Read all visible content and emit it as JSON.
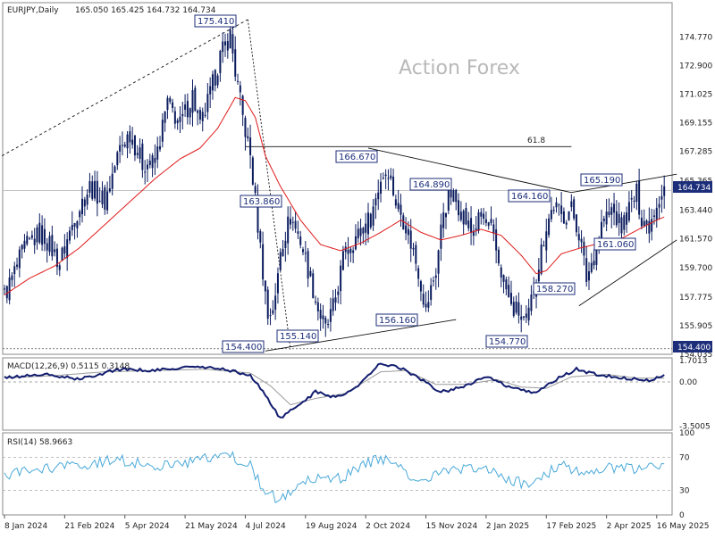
{
  "header": {
    "symbol": "EURJPY,Daily",
    "ohlc": "165.050 165.425 164.732 164.734",
    "watermark": "Action Forex"
  },
  "colors": {
    "candle": "#0b1c5e",
    "ma": "#e01b1b",
    "macd_line": "#111c6e",
    "macd_signal": "#9a9a9a",
    "rsi_line": "#49a9d9",
    "grid": "#c8c8c8",
    "label_border": "#1c2e7a"
  },
  "price_panel": {
    "ylim": [
      154.035,
      177.0
    ],
    "ticks": [
      "174.770",
      "172.900",
      "171.025",
      "169.155",
      "167.285",
      "165.365",
      "163.440",
      "161.570",
      "159.700",
      "157.775",
      "155.905",
      "154.035"
    ],
    "current_price": "164.734",
    "support_price": "154.400",
    "fib_label": "61.8",
    "fib_level": 167.5
  },
  "macd_panel": {
    "title": "MACD(12,26,9) 0.5115 0.3148",
    "ylim": [
      -3.8,
      1.9
    ],
    "ticks": [
      "1.7013",
      "0.00",
      "-3.5005"
    ]
  },
  "rsi_panel": {
    "title": "RSI(14) 58.9663",
    "ylim": [
      0,
      100
    ],
    "ticks": [
      "100",
      "70",
      "30",
      "0"
    ]
  },
  "x_axis": {
    "ticks": [
      "8 Jan 2024",
      "21 Feb 2024",
      "5 Apr 2024",
      "21 May 2024",
      "4 Jul 2024",
      "19 Aug 2024",
      "2 Oct 2024",
      "15 Nov 2024",
      "2 Jan 2025",
      "17 Feb 2025",
      "2 Apr 2025",
      "16 May 2025"
    ]
  },
  "chart_data": {
    "type": "line",
    "title": "EURJPY,Daily",
    "x": [
      "8 Jan 2024",
      "21 Feb 2024",
      "5 Apr 2024",
      "21 May 2024",
      "4 Jul 2024",
      "19 Aug 2024",
      "2 Oct 2024",
      "15 Nov 2024",
      "2 Jan 2025",
      "17 Feb 2025",
      "2 Apr 2025",
      "16 May 2025"
    ],
    "series": [
      {
        "name": "EURJPY",
        "values": [
          158.5,
          161.5,
          164.5,
          169.5,
          175.4,
          156.0,
          163.0,
          157.5,
          163.4,
          158.3,
          162.5,
          164.734
        ],
        "anchors": [
          {
            "x": -1,
            "y": 157.5
          },
          {
            "x": 3,
            "y": 159.0
          },
          {
            "x": 8,
            "y": 161.0
          },
          {
            "x": 15,
            "y": 162.0
          },
          {
            "x": 22,
            "y": 160.0
          },
          {
            "x": 28,
            "y": 163.0
          },
          {
            "x": 34,
            "y": 165.0
          },
          {
            "x": 40,
            "y": 164.0
          },
          {
            "x": 46,
            "y": 167.5
          },
          {
            "x": 50,
            "y": 168.5
          },
          {
            "x": 55,
            "y": 166.5
          },
          {
            "x": 60,
            "y": 166.5
          },
          {
            "x": 65,
            "y": 170.5
          },
          {
            "x": 70,
            "y": 169.0
          },
          {
            "x": 75,
            "y": 171.0
          },
          {
            "x": 78,
            "y": 168.8
          },
          {
            "x": 82,
            "y": 171.0
          },
          {
            "x": 86,
            "y": 173.5
          },
          {
            "x": 90,
            "y": 174.9
          },
          {
            "x": 92,
            "y": 172.5
          },
          {
            "x": 95,
            "y": 169.5
          },
          {
            "x": 98,
            "y": 167.0
          },
          {
            "x": 100,
            "y": 164.0
          },
          {
            "x": 103,
            "y": 159.5
          },
          {
            "x": 105,
            "y": 156.5
          },
          {
            "x": 108,
            "y": 157.5
          },
          {
            "x": 110,
            "y": 161.0
          },
          {
            "x": 114,
            "y": 163.0
          },
          {
            "x": 118,
            "y": 161.5
          },
          {
            "x": 122,
            "y": 159.0
          },
          {
            "x": 125,
            "y": 157.0
          },
          {
            "x": 128,
            "y": 155.6
          },
          {
            "x": 131,
            "y": 157.0
          },
          {
            "x": 136,
            "y": 161.0
          },
          {
            "x": 142,
            "y": 162.0
          },
          {
            "x": 146,
            "y": 163.0
          },
          {
            "x": 150,
            "y": 165.5
          },
          {
            "x": 153,
            "y": 166.2
          },
          {
            "x": 156,
            "y": 164.0
          },
          {
            "x": 160,
            "y": 162.5
          },
          {
            "x": 165,
            "y": 159.5
          },
          {
            "x": 168,
            "y": 157.0
          },
          {
            "x": 172,
            "y": 159.5
          },
          {
            "x": 175,
            "y": 163.5
          },
          {
            "x": 178,
            "y": 164.5
          },
          {
            "x": 182,
            "y": 163.5
          },
          {
            "x": 186,
            "y": 162.0
          },
          {
            "x": 190,
            "y": 163.0
          },
          {
            "x": 194,
            "y": 162.0
          },
          {
            "x": 198,
            "y": 159.5
          },
          {
            "x": 202,
            "y": 157.0
          },
          {
            "x": 205,
            "y": 156.8
          },
          {
            "x": 208,
            "y": 155.8
          },
          {
            "x": 210,
            "y": 157.5
          },
          {
            "x": 213,
            "y": 160.0
          },
          {
            "x": 216,
            "y": 162.5
          },
          {
            "x": 219,
            "y": 163.8
          },
          {
            "x": 222,
            "y": 163.0
          },
          {
            "x": 226,
            "y": 163.5
          },
          {
            "x": 229,
            "y": 162.0
          },
          {
            "x": 232,
            "y": 159.0
          },
          {
            "x": 235,
            "y": 160.5
          },
          {
            "x": 238,
            "y": 162.5
          },
          {
            "x": 242,
            "y": 163.5
          },
          {
            "x": 246,
            "y": 162.3
          },
          {
            "x": 249,
            "y": 163.5
          },
          {
            "x": 252,
            "y": 164.5
          },
          {
            "x": 254,
            "y": 163.0
          },
          {
            "x": 257,
            "y": 162.5
          },
          {
            "x": 260,
            "y": 164.0
          },
          {
            "x": 263,
            "y": 165.0
          }
        ]
      },
      {
        "name": "MA",
        "values": [
          157.8,
          160.2,
          163.0,
          167.5,
          171.0,
          162.0,
          160.5,
          160.8,
          161.8,
          160.0,
          160.8,
          163.0
        ],
        "anchors": [
          {
            "x": -1,
            "y": 157.8
          },
          {
            "x": 10,
            "y": 159.0
          },
          {
            "x": 20,
            "y": 159.8
          },
          {
            "x": 30,
            "y": 161.0
          },
          {
            "x": 40,
            "y": 162.5
          },
          {
            "x": 50,
            "y": 164.0
          },
          {
            "x": 60,
            "y": 165.5
          },
          {
            "x": 70,
            "y": 166.8
          },
          {
            "x": 78,
            "y": 167.5
          },
          {
            "x": 85,
            "y": 168.8
          },
          {
            "x": 92,
            "y": 170.8
          },
          {
            "x": 96,
            "y": 170.6
          },
          {
            "x": 100,
            "y": 169.5
          },
          {
            "x": 104,
            "y": 167.0
          },
          {
            "x": 110,
            "y": 165.0
          },
          {
            "x": 118,
            "y": 162.8
          },
          {
            "x": 126,
            "y": 161.2
          },
          {
            "x": 134,
            "y": 160.8
          },
          {
            "x": 142,
            "y": 161.3
          },
          {
            "x": 150,
            "y": 162.0
          },
          {
            "x": 158,
            "y": 162.8
          },
          {
            "x": 166,
            "y": 162.0
          },
          {
            "x": 174,
            "y": 161.5
          },
          {
            "x": 182,
            "y": 161.8
          },
          {
            "x": 190,
            "y": 162.2
          },
          {
            "x": 198,
            "y": 161.8
          },
          {
            "x": 206,
            "y": 160.5
          },
          {
            "x": 212,
            "y": 159.3
          },
          {
            "x": 216,
            "y": 159.5
          },
          {
            "x": 222,
            "y": 160.6
          },
          {
            "x": 230,
            "y": 161.0
          },
          {
            "x": 238,
            "y": 161.3
          },
          {
            "x": 246,
            "y": 161.6
          },
          {
            "x": 254,
            "y": 162.3
          },
          {
            "x": 260,
            "y": 162.8
          },
          {
            "x": 263,
            "y": 163.0
          }
        ]
      }
    ],
    "annotations": [
      {
        "text": "175.410",
        "value": 175.41
      },
      {
        "text": "166.670",
        "value": 166.67
      },
      {
        "text": "164.890",
        "value": 164.89
      },
      {
        "text": "164.160",
        "value": 164.16
      },
      {
        "text": "165.190",
        "value": 165.19
      },
      {
        "text": "163.860",
        "value": 163.86
      },
      {
        "text": "161.060",
        "value": 161.06
      },
      {
        "text": "158.270",
        "value": 158.27
      },
      {
        "text": "156.160",
        "value": 156.16
      },
      {
        "text": "155.140",
        "value": 155.14
      },
      {
        "text": "154.400",
        "value": 154.4
      },
      {
        "text": "154.770",
        "value": 154.77
      }
    ],
    "macd": {
      "name": "MACD(12,26,9)",
      "values": [
        0.3,
        0.9,
        0.6,
        1.2,
        0.8,
        -2.9,
        -0.6,
        -1.0,
        1.0,
        -0.8,
        0.4,
        0.5115
      ]
    },
    "macd_signal": {
      "values": [
        0.2,
        0.7,
        0.6,
        1.0,
        0.9,
        -1.6,
        -0.9,
        -0.6,
        0.8,
        -0.4,
        0.5,
        0.3148
      ]
    },
    "rsi": {
      "name": "RSI(14)",
      "values": [
        48,
        60,
        70,
        62,
        72,
        18,
        55,
        45,
        58,
        40,
        55,
        58.9663
      ]
    }
  }
}
